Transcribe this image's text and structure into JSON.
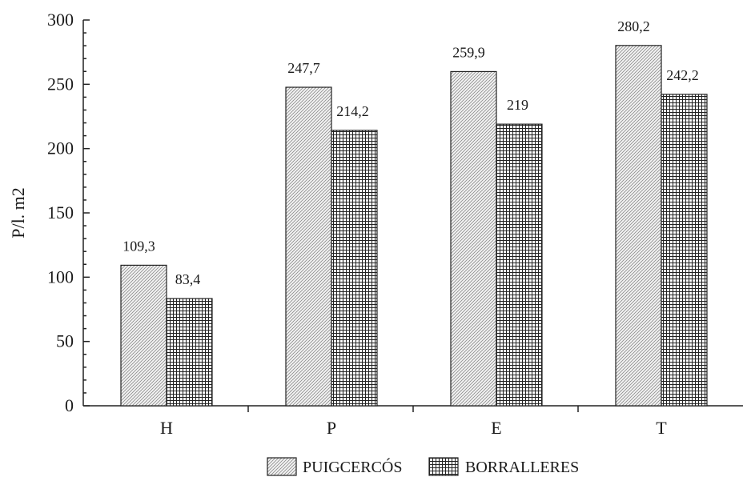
{
  "chart_data": {
    "type": "bar",
    "categories": [
      "H",
      "P",
      "E",
      "T"
    ],
    "series": [
      {
        "name": "PUIGCERCÓS",
        "values": [
          109.3,
          247.7,
          259.9,
          280.2
        ],
        "labels": [
          "109,3",
          "247,7",
          "259,9",
          "280,2"
        ],
        "pattern": "diagonal-hatch"
      },
      {
        "name": "BORRALLERES",
        "values": [
          83.4,
          214.2,
          219,
          242.2
        ],
        "labels": [
          "83,4",
          "214,2",
          "219",
          "242,2"
        ],
        "pattern": "crosshatch"
      }
    ],
    "ylabel": "P/l. m2",
    "xlabel": "",
    "ylim": [
      0,
      300
    ],
    "yticks": [
      "0",
      "50",
      "100",
      "150",
      "200",
      "250",
      "300"
    ],
    "grid": false,
    "legend_position": "bottom-center"
  }
}
